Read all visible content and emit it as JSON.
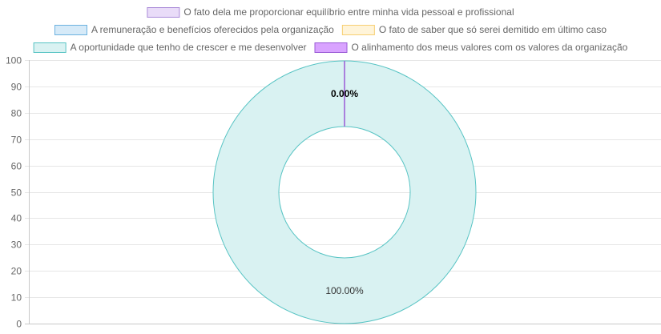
{
  "chart_data": {
    "type": "pie",
    "variant": "doughnut",
    "legend_position": "top",
    "grid": true,
    "ylim": [
      0,
      100
    ],
    "yticks": [
      0,
      10,
      20,
      30,
      40,
      50,
      60,
      70,
      80,
      90,
      100
    ],
    "slices": [
      {
        "label": "O fato dela me proporcionar equilíbrio entre minha vida pessoal e profissional",
        "value": 0,
        "percent_label": "",
        "fill": "#e9dcf8",
        "stroke": "#a98ad8"
      },
      {
        "label": "A remuneração e benefícios oferecidos pela organização",
        "value": 0,
        "percent_label": "",
        "fill": "#d6eaf8",
        "stroke": "#6cb2e0"
      },
      {
        "label": "O fato de saber que só serei demitido em último caso",
        "value": 0,
        "percent_label": "",
        "fill": "#fff4d9",
        "stroke": "#f7cf72"
      },
      {
        "label": "A oportunidade que tenho de crescer e me desenvolver",
        "value": 100,
        "percent_label": "100.00%",
        "fill": "#d9f2f2",
        "stroke": "#58c4c4"
      },
      {
        "label": "O alinhamento dos meus valores com os valores da organização",
        "value": 0,
        "percent_label": "0.00%",
        "fill": "#d9a3ff",
        "stroke": "#9a5bd6"
      }
    ]
  }
}
